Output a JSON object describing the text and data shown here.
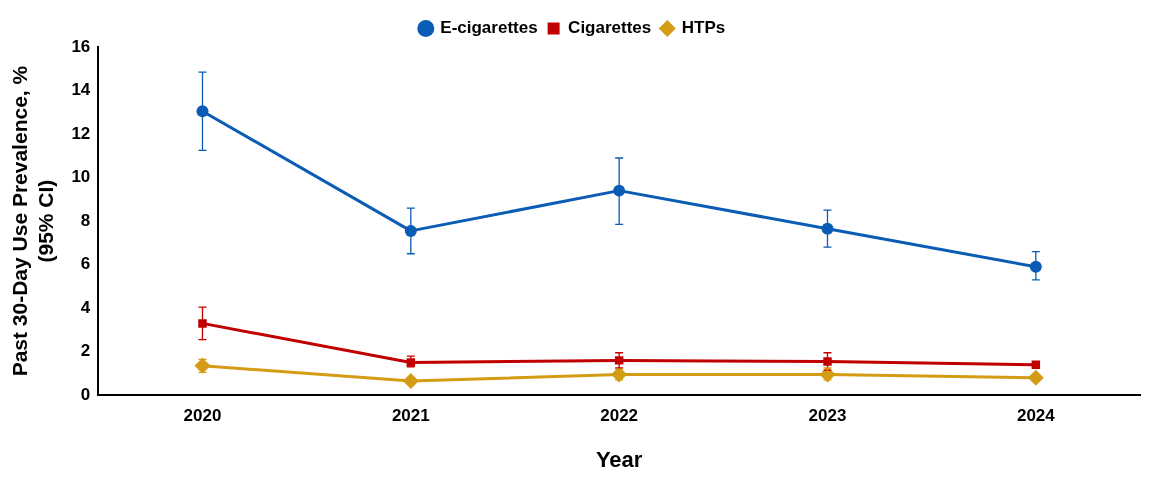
{
  "chart_data": {
    "type": "line",
    "xlabel": "Year",
    "ylabel": "Past 30-Day Use Prevalence, % (95% CI)",
    "categories": [
      "2020",
      "2021",
      "2022",
      "2023",
      "2024"
    ],
    "series": [
      {
        "name": "E-cigarettes",
        "color": "#0b5cb5",
        "marker": "circle",
        "values": [
          13.05,
          7.55,
          9.4,
          7.65,
          5.9
        ],
        "errors": [
          [
            11.25,
            14.85
          ],
          [
            6.5,
            8.6
          ],
          [
            7.85,
            10.9
          ],
          [
            6.8,
            8.5
          ],
          [
            5.3,
            6.6
          ]
        ]
      },
      {
        "name": "Cigarettes",
        "color": "#c00000",
        "marker": "square",
        "values": [
          3.3,
          1.5,
          1.6,
          1.55,
          1.4
        ],
        "errors": [
          [
            2.55,
            4.05
          ],
          [
            1.3,
            1.8
          ],
          [
            1.25,
            1.95
          ],
          [
            1.15,
            1.95
          ],
          null
        ]
      },
      {
        "name": "HTPs",
        "color": "#d49c14",
        "marker": "diamond",
        "values": [
          1.35,
          0.65,
          0.95,
          0.95,
          0.8
        ],
        "errors": [
          [
            1.05,
            1.65
          ],
          null,
          [
            0.7,
            1.2
          ],
          [
            0.7,
            1.25
          ],
          [
            0.65,
            0.95
          ]
        ]
      }
    ],
    "ylim": [
      0,
      16
    ],
    "yticks": [
      0,
      2,
      4,
      6,
      8,
      10,
      12,
      14,
      16
    ],
    "grid": false,
    "legend": "top",
    "line_style": "solid"
  }
}
